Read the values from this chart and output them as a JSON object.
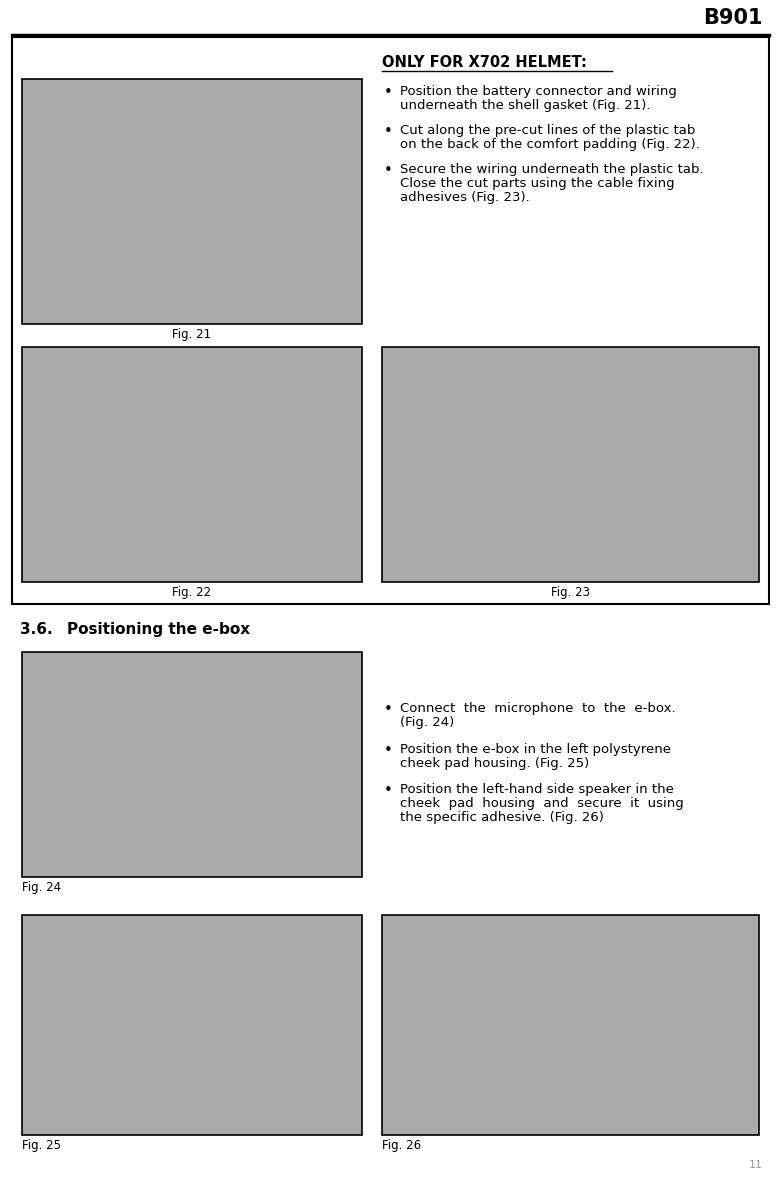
{
  "page_title": "B901",
  "page_number": "11",
  "bg_color": "#ffffff",
  "text_color": "#000000",
  "section_title": "3.6.",
  "section_title_bold": "Positioning the e-box",
  "top_box_label": "ONLY FOR X702 HELMET:",
  "bullet_points_top": [
    [
      "Position the battery connector and wiring",
      "underneath the shell gasket (Fig. 21)."
    ],
    [
      "Cut along the pre-cut lines of the plastic tab",
      "on the back of the comfort padding (Fig. 22)."
    ],
    [
      "Secure the wiring underneath the plastic tab.",
      "Close the cut parts using the cable fixing",
      "adhesives (Fig. 23)."
    ]
  ],
  "bullet_points_bottom": [
    [
      "Connect  the  microphone  to  the  e-box.",
      "(Fig. 24)"
    ],
    [
      "Position the e-box in the left polystyrene",
      "cheek pad housing. (Fig. 25)"
    ],
    [
      "Position the left-hand side speaker in the",
      "cheek  pad  housing  and  secure  it  using",
      "the specific adhesive. (Fig. 26)"
    ]
  ],
  "fig_labels": [
    "Fig. 21",
    "Fig. 22",
    "Fig. 23",
    "Fig. 24",
    "Fig. 25",
    "Fig. 26"
  ],
  "outer_box_color": "#000000",
  "gray_color": "#aaaaaa",
  "fig_label_fontsize": 8.5,
  "body_fontsize": 9.5,
  "title_fontsize": 15,
  "section_fontsize": 11
}
